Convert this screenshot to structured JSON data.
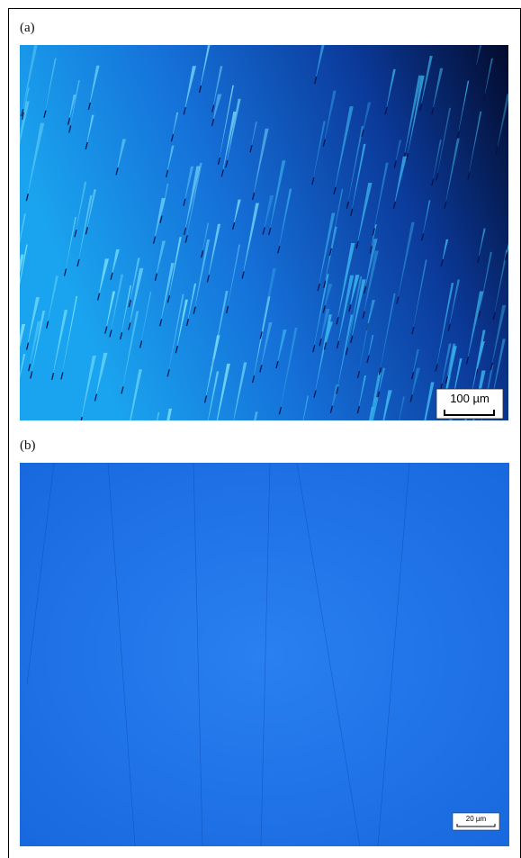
{
  "panels": [
    {
      "label": "(a)",
      "scale_bar": "100 µm"
    },
    {
      "label": "(b)",
      "scale_bar": "20 µm"
    }
  ]
}
